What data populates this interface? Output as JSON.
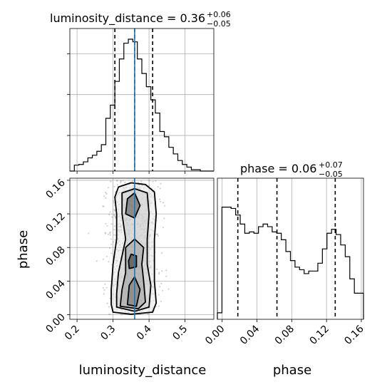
{
  "chart_data": [
    {
      "type": "histogram",
      "parameter": "luminosity_distance",
      "title": "luminosity_distance = 0.36",
      "title_value": "0.36",
      "title_plus": "+0.06",
      "title_minus": "−0.05",
      "xlim": [
        0.18,
        0.58
      ],
      "bin_edges": [
        0.18,
        0.1925,
        0.205,
        0.2175,
        0.23,
        0.2425,
        0.255,
        0.2675,
        0.28,
        0.2925,
        0.305,
        0.3175,
        0.33,
        0.3425,
        0.355,
        0.3675,
        0.38,
        0.3925,
        0.405,
        0.4175,
        0.43,
        0.4425,
        0.455,
        0.4675,
        0.48,
        0.4925,
        0.505,
        0.5175,
        0.53,
        0.5425,
        0.555,
        0.5675,
        0.58
      ],
      "density": [
        0.0,
        0.045,
        0.05,
        0.07,
        0.1,
        0.12,
        0.15,
        0.2,
        0.4,
        0.5,
        0.68,
        0.85,
        0.97,
        1.0,
        0.98,
        0.85,
        0.74,
        0.64,
        0.54,
        0.44,
        0.3,
        0.26,
        0.18,
        0.13,
        0.08,
        0.05,
        0.03,
        0.01,
        0.01,
        0.0,
        0.0,
        0.0
      ],
      "quantile_lines": [
        0.305,
        0.36,
        0.41
      ],
      "truth": 0.36,
      "grid": true
    },
    {
      "type": "histogram",
      "parameter": "phase",
      "title": "phase = 0.06",
      "title_value": "0.06",
      "title_plus": "+0.07",
      "title_minus": "−0.05",
      "xlim": [
        -0.0055,
        0.1625
      ],
      "xticks": [
        "0.00",
        "0.04",
        "0.08",
        "0.12",
        "0.16"
      ],
      "xtick_values": [
        0.0,
        0.04,
        0.08,
        0.12,
        0.16
      ],
      "xlabel": "phase",
      "bin_edges": [
        -0.0055,
        -0.00025,
        0.005,
        0.01025,
        0.0155,
        0.02075,
        0.026,
        0.03125,
        0.0365,
        0.04175,
        0.047,
        0.05225,
        0.0575,
        0.06275,
        0.068,
        0.07325,
        0.0785,
        0.08375,
        0.089,
        0.09425,
        0.0995,
        0.10475,
        0.11,
        0.11525,
        0.1205,
        0.12575,
        0.131,
        0.13625,
        0.1415,
        0.14675,
        0.152,
        0.15725,
        0.1625
      ],
      "density": [
        0.05,
        0.86,
        0.86,
        0.85,
        0.8,
        0.73,
        0.66,
        0.67,
        0.66,
        0.71,
        0.73,
        0.71,
        0.67,
        0.66,
        0.61,
        0.52,
        0.45,
        0.4,
        0.38,
        0.35,
        0.37,
        0.37,
        0.43,
        0.54,
        0.66,
        0.69,
        0.65,
        0.57,
        0.48,
        0.31,
        0.2,
        0.2
      ],
      "quantile_lines": [
        0.018,
        0.063,
        0.13
      ],
      "grid": true
    },
    {
      "type": "contour",
      "x": "luminosity_distance",
      "y": "phase",
      "xlim": [
        0.18,
        0.58
      ],
      "ylim": [
        -0.0055,
        0.1625
      ],
      "xticks": [
        "0.2",
        "0.3",
        "0.4",
        "0.5"
      ],
      "xtick_values": [
        0.2,
        0.3,
        0.4,
        0.5
      ],
      "yticks": [
        "0.00",
        "0.04",
        "0.08",
        "0.12",
        "0.16"
      ],
      "ytick_values": [
        0.0,
        0.04,
        0.08,
        0.12,
        0.16
      ],
      "xlabel": "luminosity_distance",
      "ylabel": "phase",
      "truth_x": 0.36,
      "sample_region": {
        "x": [
          0.21,
          0.5
        ],
        "y": [
          0.0,
          0.16
        ]
      },
      "contours": [
        [
          [
            0.3,
            0.003
          ],
          [
            0.35,
            0.0005
          ],
          [
            0.41,
            0.003
          ],
          [
            0.42,
            0.014
          ],
          [
            0.415,
            0.04
          ],
          [
            0.415,
            0.09
          ],
          [
            0.42,
            0.12
          ],
          [
            0.415,
            0.146
          ],
          [
            0.39,
            0.155
          ],
          [
            0.35,
            0.157
          ],
          [
            0.315,
            0.152
          ],
          [
            0.305,
            0.14
          ],
          [
            0.31,
            0.12
          ],
          [
            0.31,
            0.09
          ],
          [
            0.3,
            0.06
          ],
          [
            0.295,
            0.03
          ],
          [
            0.295,
            0.012
          ]
        ],
        [
          [
            0.31,
            0.009
          ],
          [
            0.36,
            0.004
          ],
          [
            0.4,
            0.009
          ],
          [
            0.405,
            0.035
          ],
          [
            0.395,
            0.06
          ],
          [
            0.395,
            0.09
          ],
          [
            0.4,
            0.12
          ],
          [
            0.395,
            0.145
          ],
          [
            0.36,
            0.15
          ],
          [
            0.325,
            0.145
          ],
          [
            0.325,
            0.12
          ],
          [
            0.335,
            0.09
          ],
          [
            0.315,
            0.05
          ],
          [
            0.31,
            0.025
          ]
        ],
        [
          [
            0.32,
            0.01
          ],
          [
            0.37,
            0.007
          ],
          [
            0.39,
            0.015
          ],
          [
            0.385,
            0.04
          ],
          [
            0.38,
            0.06
          ],
          [
            0.385,
            0.08
          ],
          [
            0.36,
            0.09
          ],
          [
            0.335,
            0.08
          ],
          [
            0.335,
            0.05
          ],
          [
            0.325,
            0.03
          ]
        ],
        [
          [
            0.34,
            0.012
          ],
          [
            0.365,
            0.01
          ],
          [
            0.375,
            0.03
          ],
          [
            0.36,
            0.045
          ],
          [
            0.345,
            0.035
          ]
        ],
        [
          [
            0.335,
            0.12
          ],
          [
            0.36,
            0.115
          ],
          [
            0.375,
            0.13
          ],
          [
            0.36,
            0.145
          ],
          [
            0.34,
            0.138
          ]
        ],
        [
          [
            0.345,
            0.055
          ],
          [
            0.365,
            0.057
          ],
          [
            0.365,
            0.07
          ],
          [
            0.35,
            0.072
          ],
          [
            0.343,
            0.064
          ]
        ]
      ]
    }
  ]
}
